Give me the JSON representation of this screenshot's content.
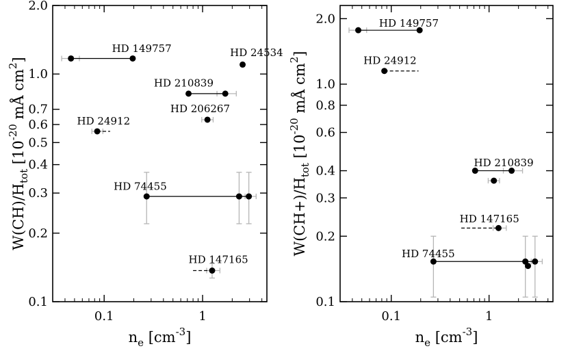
{
  "chart_data": [
    {
      "type": "scatter",
      "xscale": "log",
      "yscale": "log",
      "xlim": [
        0.03,
        4.5
      ],
      "ylim": [
        0.1,
        2.0
      ],
      "xticks": [
        0.1,
        1
      ],
      "xtick_labels": [
        "0.1",
        "1"
      ],
      "yticks": [
        0.1,
        0.2,
        0.3,
        0.4,
        0.5,
        0.6,
        0.7,
        1.0,
        2.0
      ],
      "ytick_labels": [
        "0.1",
        "0.2",
        "0.3",
        "0.4",
        "0.5",
        "0.6",
        "0.7",
        "1.0",
        "2.0"
      ],
      "xlabel": {
        "base": "n",
        "sub": "e",
        "rest": " [cm",
        "sup": "-3",
        "end": "]"
      },
      "ylabel": {
        "base": "W(CH)/H",
        "sub": "tot",
        "rest": "  [10",
        "sup": "-20",
        "mid": " mÅ cm",
        "sup2": "2",
        "end": "]"
      },
      "points": [
        {
          "x": 0.046,
          "y": 1.17,
          "xerr": [
            0.037,
            0.056
          ]
        },
        {
          "x": 0.195,
          "y": 1.17
        },
        {
          "x": 2.55,
          "y": 1.1
        },
        {
          "x": 0.72,
          "y": 0.82
        },
        {
          "x": 1.7,
          "y": 0.82,
          "xerr": [
            1.4,
            2.2
          ]
        },
        {
          "x": 1.12,
          "y": 0.63,
          "xerr": [
            0.98,
            1.28
          ]
        },
        {
          "x": 0.085,
          "y": 0.56,
          "xerr": [
            0.075,
            0.097
          ]
        },
        {
          "x": 0.27,
          "y": 0.29,
          "yerr": [
            0.22,
            0.37
          ]
        },
        {
          "x": 2.35,
          "y": 0.29,
          "yerr": [
            0.22,
            0.37
          ]
        },
        {
          "x": 2.95,
          "y": 0.29,
          "xerr": [
            2.7,
            3.5
          ],
          "yerr": [
            0.22,
            0.37
          ]
        },
        {
          "x": 1.25,
          "y": 0.137,
          "xerr": [
            1.1,
            1.5
          ],
          "yerr": [
            0.127,
            0.147
          ]
        }
      ],
      "connectors": [
        {
          "from": [
            0.046,
            1.17
          ],
          "to": [
            0.195,
            1.17
          ],
          "style": "solid"
        },
        {
          "from": [
            0.72,
            0.82
          ],
          "to": [
            1.7,
            0.82
          ],
          "style": "solid"
        },
        {
          "from": [
            0.27,
            0.29
          ],
          "to": [
            2.95,
            0.29
          ],
          "style": "solid"
        },
        {
          "from": [
            0.085,
            0.56
          ],
          "to": [
            0.115,
            0.56
          ],
          "style": "dashed"
        },
        {
          "from": [
            0.8,
            0.137
          ],
          "to": [
            1.25,
            0.137
          ],
          "style": "dashed"
        }
      ],
      "annotations": [
        {
          "text": "HD 149757",
          "x": 0.12,
          "y": 1.25
        },
        {
          "text": "HD 24534",
          "x": 1.9,
          "y": 1.2
        },
        {
          "text": "HD 210839",
          "x": 0.32,
          "y": 0.88
        },
        {
          "text": "HD 206267",
          "x": 0.47,
          "y": 0.68
        },
        {
          "text": "HD 24912",
          "x": 0.053,
          "y": 0.6
        },
        {
          "text": "HD 74455",
          "x": 0.125,
          "y": 0.31
        },
        {
          "text": "HD 147165",
          "x": 0.72,
          "y": 0.148
        }
      ]
    },
    {
      "type": "scatter",
      "xscale": "log",
      "yscale": "log",
      "xlim": [
        0.03,
        4.5
      ],
      "ylim": [
        0.1,
        2.3
      ],
      "xticks": [
        0.1,
        1
      ],
      "xtick_labels": [
        "0.1",
        "1"
      ],
      "yticks": [
        0.1,
        0.2,
        0.3,
        0.4,
        0.6,
        0.8,
        1.0,
        2.0
      ],
      "ytick_labels": [
        "0.1",
        "0.2",
        "0.3",
        "0.4",
        "0.6",
        "0.8",
        "1.0",
        "2.0"
      ],
      "xlabel": {
        "base": "n",
        "sub": "e",
        "rest": " [cm",
        "sup": "-3",
        "end": "]"
      },
      "ylabel": {
        "base": "W(CH+)/H",
        "sub": "tot",
        "rest": "  [10",
        "sup": "-20",
        "mid": " mÅ cm",
        "sup2": "2",
        "end": "]"
      },
      "points": [
        {
          "x": 0.046,
          "y": 1.77,
          "xerr": [
            0.037,
            0.056
          ]
        },
        {
          "x": 0.195,
          "y": 1.77
        },
        {
          "x": 0.085,
          "y": 1.15
        },
        {
          "x": 0.72,
          "y": 0.4
        },
        {
          "x": 1.7,
          "y": 0.4,
          "xerr": [
            1.4,
            2.2
          ]
        },
        {
          "x": 1.12,
          "y": 0.36,
          "xerr": [
            0.98,
            1.28
          ]
        },
        {
          "x": 1.25,
          "y": 0.218,
          "xerr": [
            1.1,
            1.5
          ]
        },
        {
          "x": 0.27,
          "y": 0.153,
          "yerr": [
            0.105,
            0.2
          ]
        },
        {
          "x": 2.35,
          "y": 0.153,
          "yerr": [
            0.105,
            0.2
          ]
        },
        {
          "x": 2.5,
          "y": 0.146
        },
        {
          "x": 2.95,
          "y": 0.153,
          "xerr": [
            2.7,
            3.5
          ],
          "yerr": [
            0.105,
            0.2
          ]
        }
      ],
      "connectors": [
        {
          "from": [
            0.046,
            1.77
          ],
          "to": [
            0.195,
            1.77
          ],
          "style": "solid"
        },
        {
          "from": [
            0.72,
            0.4
          ],
          "to": [
            1.7,
            0.4
          ],
          "style": "solid"
        },
        {
          "from": [
            0.27,
            0.153
          ],
          "to": [
            2.95,
            0.153
          ],
          "style": "solid"
        },
        {
          "from": [
            0.085,
            1.15
          ],
          "to": [
            0.19,
            1.15
          ],
          "style": "dashed"
        },
        {
          "from": [
            0.52,
            0.218
          ],
          "to": [
            1.25,
            0.218
          ],
          "style": "dashed"
        }
      ],
      "annotations": [
        {
          "text": "HD 149757",
          "x": 0.075,
          "y": 1.84
        },
        {
          "text": "HD 24912",
          "x": 0.052,
          "y": 1.24
        },
        {
          "text": "HD 210839",
          "x": 0.7,
          "y": 0.42
        },
        {
          "text": "HD 147165",
          "x": 0.5,
          "y": 0.232
        },
        {
          "text": "HD 74455",
          "x": 0.128,
          "y": 0.16
        }
      ]
    }
  ]
}
